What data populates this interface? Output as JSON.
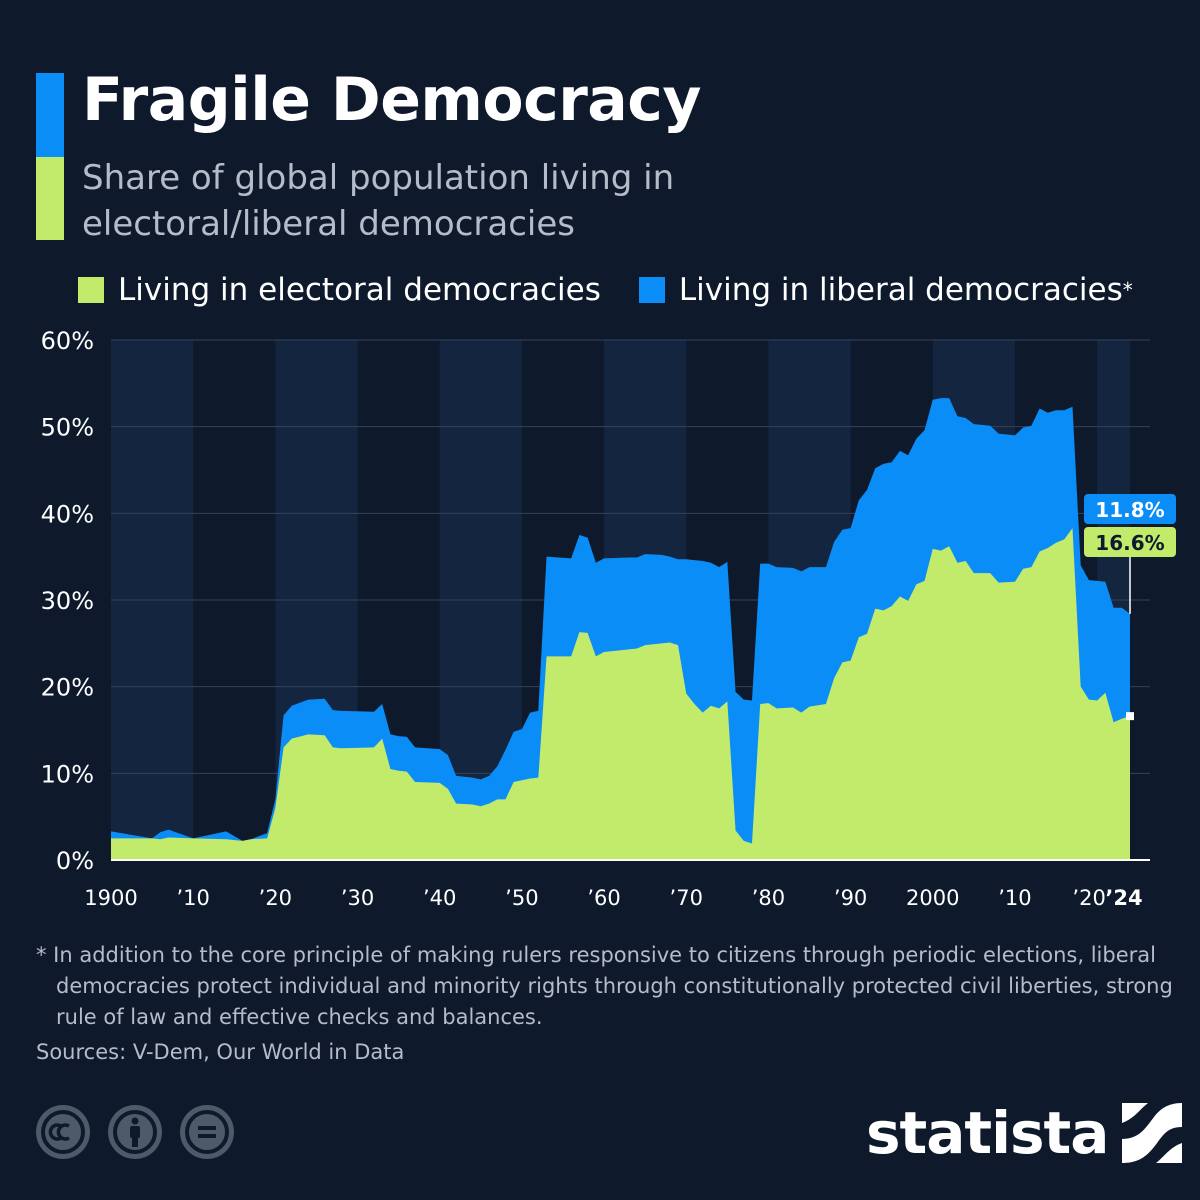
{
  "header": {
    "title": "Fragile Democracy",
    "subtitle": "Share of global population living in electoral/liberal democracies"
  },
  "legend": {
    "electoral": "Living in electoral democracies",
    "liberal": "Living in liberal democracies",
    "liberal_marker": "*"
  },
  "colors": {
    "background": "#0e1a2c",
    "electoral": "#c2ea6b",
    "liberal": "#0b8df7",
    "band": "#142540",
    "text_muted": "#b3bcc8"
  },
  "chart_data": {
    "type": "area",
    "stacked": true,
    "title": "Fragile Democracy",
    "subtitle": "Share of global population living in electoral/liberal democracies",
    "xlabel": "",
    "ylabel": "",
    "ylim": [
      0,
      60
    ],
    "xlim": [
      1900,
      2024
    ],
    "y_ticks": [
      "0%",
      "10%",
      "20%",
      "30%",
      "40%",
      "50%",
      "60%"
    ],
    "x_ticks": [
      {
        "year": 1900,
        "label": "1900"
      },
      {
        "year": 1910,
        "label": "’10"
      },
      {
        "year": 1920,
        "label": "’20"
      },
      {
        "year": 1930,
        "label": "’30"
      },
      {
        "year": 1940,
        "label": "’40"
      },
      {
        "year": 1950,
        "label": "’50"
      },
      {
        "year": 1960,
        "label": "’60"
      },
      {
        "year": 1970,
        "label": "’70"
      },
      {
        "year": 1980,
        "label": "’80"
      },
      {
        "year": 1990,
        "label": "’90"
      },
      {
        "year": 2000,
        "label": "2000"
      },
      {
        "year": 2010,
        "label": "’10"
      },
      {
        "year": 2020,
        "label": "’20"
      },
      {
        "year": 2024,
        "label": "’24",
        "bold": true
      }
    ],
    "series": [
      {
        "name": "Living in electoral democracies",
        "points": [
          [
            1900,
            2.5
          ],
          [
            1905,
            2.5
          ],
          [
            1906,
            2.4
          ],
          [
            1907,
            2.6
          ],
          [
            1910,
            2.5
          ],
          [
            1914,
            2.4
          ],
          [
            1916,
            2.2
          ],
          [
            1917,
            2.4
          ],
          [
            1919,
            2.5
          ],
          [
            1920,
            6
          ],
          [
            1921,
            13
          ],
          [
            1922,
            14
          ],
          [
            1924,
            14.5
          ],
          [
            1926,
            14.4
          ],
          [
            1927,
            13
          ],
          [
            1928,
            12.9
          ],
          [
            1932,
            13
          ],
          [
            1933,
            14
          ],
          [
            1934,
            10.5
          ],
          [
            1935,
            10.3
          ],
          [
            1936,
            10.2
          ],
          [
            1937,
            9
          ],
          [
            1940,
            8.9
          ],
          [
            1941,
            8.2
          ],
          [
            1942,
            6.5
          ],
          [
            1944,
            6.4
          ],
          [
            1945,
            6.2
          ],
          [
            1946,
            6.5
          ],
          [
            1947,
            7
          ],
          [
            1948,
            7
          ],
          [
            1949,
            9
          ],
          [
            1950,
            9.2
          ],
          [
            1951,
            9.4
          ],
          [
            1952,
            9.5
          ],
          [
            1953,
            23.5
          ],
          [
            1956,
            23.5
          ],
          [
            1957,
            26.3
          ],
          [
            1958,
            26.2
          ],
          [
            1959,
            23.5
          ],
          [
            1960,
            24
          ],
          [
            1963,
            24.3
          ],
          [
            1964,
            24.4
          ],
          [
            1965,
            24.8
          ],
          [
            1967,
            25
          ],
          [
            1968,
            25.1
          ],
          [
            1969,
            24.8
          ],
          [
            1970,
            19.2
          ],
          [
            1971,
            18
          ],
          [
            1972,
            17
          ],
          [
            1973,
            17.8
          ],
          [
            1974,
            17.5
          ],
          [
            1975,
            18.3
          ],
          [
            1976,
            3.4
          ],
          [
            1977,
            2.2
          ],
          [
            1978,
            1.9
          ],
          [
            1979,
            18
          ],
          [
            1980,
            18.1
          ],
          [
            1981,
            17.5
          ],
          [
            1983,
            17.6
          ],
          [
            1984,
            17
          ],
          [
            1985,
            17.7
          ],
          [
            1987,
            18
          ],
          [
            1988,
            21
          ],
          [
            1989,
            22.8
          ],
          [
            1990,
            23
          ],
          [
            1991,
            25.7
          ],
          [
            1992,
            26.1
          ],
          [
            1993,
            29
          ],
          [
            1994,
            28.8
          ],
          [
            1995,
            29.3
          ],
          [
            1996,
            30.4
          ],
          [
            1997,
            29.9
          ],
          [
            1998,
            31.8
          ],
          [
            1999,
            32.2
          ],
          [
            2000,
            35.9
          ],
          [
            2001,
            35.7
          ],
          [
            2002,
            36.2
          ],
          [
            2003,
            34.3
          ],
          [
            2004,
            34.5
          ],
          [
            2005,
            33.1
          ],
          [
            2007,
            33.1
          ],
          [
            2008,
            32
          ],
          [
            2010,
            32.1
          ],
          [
            2011,
            33.6
          ],
          [
            2012,
            33.8
          ],
          [
            2013,
            35.6
          ],
          [
            2014,
            36
          ],
          [
            2015,
            36.6
          ],
          [
            2016,
            37
          ],
          [
            2017,
            38.3
          ],
          [
            2018,
            20
          ],
          [
            2019,
            18.5
          ],
          [
            2020,
            18.4
          ],
          [
            2021,
            19.3
          ],
          [
            2022,
            15.9
          ],
          [
            2023,
            16.3
          ],
          [
            2024,
            16.6
          ]
        ]
      },
      {
        "name": "Living in liberal democracies",
        "points": [
          [
            1900,
            0.8
          ],
          [
            1903,
            0.9
          ],
          [
            1906,
            0.8
          ],
          [
            1907,
            0.9
          ],
          [
            1914,
            0.9
          ],
          [
            1915,
            0.8
          ],
          [
            1919,
            0.6
          ],
          [
            1920,
            1
          ],
          [
            1921,
            3.7
          ],
          [
            1922,
            3.8
          ],
          [
            1923,
            3.8
          ],
          [
            1924,
            4
          ],
          [
            1926,
            4.2
          ],
          [
            1927,
            4.3
          ],
          [
            1928,
            4.3
          ],
          [
            1932,
            4.1
          ],
          [
            1933,
            4
          ],
          [
            1934,
            4
          ],
          [
            1935,
            4
          ],
          [
            1936,
            4
          ],
          [
            1937,
            4
          ],
          [
            1940,
            3.9
          ],
          [
            1941,
            3.9
          ],
          [
            1942,
            3.2
          ],
          [
            1944,
            3.1
          ],
          [
            1945,
            3.1
          ],
          [
            1946,
            3.2
          ],
          [
            1947,
            3.8
          ],
          [
            1948,
            5.7
          ],
          [
            1949,
            5.8
          ],
          [
            1950,
            5.9
          ],
          [
            1951,
            7.6
          ],
          [
            1952,
            7.7
          ],
          [
            1953,
            11.5
          ],
          [
            1956,
            11.3
          ],
          [
            1957,
            11.2
          ],
          [
            1958,
            11
          ],
          [
            1959,
            10.8
          ],
          [
            1960,
            10.8
          ],
          [
            1963,
            10.6
          ],
          [
            1964,
            10.5
          ],
          [
            1965,
            10.5
          ],
          [
            1967,
            10.2
          ],
          [
            1968,
            9.9
          ],
          [
            1969,
            9.9
          ],
          [
            1970,
            15.5
          ],
          [
            1971,
            16.6
          ],
          [
            1972,
            17.5
          ],
          [
            1973,
            16.5
          ],
          [
            1974,
            16.3
          ],
          [
            1975,
            16.1
          ],
          [
            1976,
            16
          ],
          [
            1977,
            16.3
          ],
          [
            1978,
            16.5
          ],
          [
            1979,
            16.2
          ],
          [
            1980,
            16.1
          ],
          [
            1981,
            16.3
          ],
          [
            1983,
            16.1
          ],
          [
            1984,
            16.3
          ],
          [
            1985,
            16.1
          ],
          [
            1987,
            15.8
          ],
          [
            1988,
            15.7
          ],
          [
            1989,
            15.3
          ],
          [
            1990,
            15.3
          ],
          [
            1991,
            15.8
          ],
          [
            1992,
            16.6
          ],
          [
            1993,
            16.2
          ],
          [
            1994,
            16.9
          ],
          [
            1995,
            16.6
          ],
          [
            1996,
            16.8
          ],
          [
            1997,
            16.8
          ],
          [
            1998,
            16.8
          ],
          [
            1999,
            17.4
          ],
          [
            2000,
            17.2
          ],
          [
            2001,
            17.6
          ],
          [
            2002,
            17.1
          ],
          [
            2003,
            16.9
          ],
          [
            2004,
            16.5
          ],
          [
            2005,
            17.2
          ],
          [
            2007,
            17
          ],
          [
            2008,
            17.2
          ],
          [
            2010,
            16.9
          ],
          [
            2011,
            16.3
          ],
          [
            2012,
            16.3
          ],
          [
            2013,
            16.5
          ],
          [
            2014,
            15.6
          ],
          [
            2015,
            15.3
          ],
          [
            2016,
            14.9
          ],
          [
            2017,
            14
          ],
          [
            2018,
            14
          ],
          [
            2019,
            13.8
          ],
          [
            2020,
            13.8
          ],
          [
            2021,
            12.8
          ],
          [
            2022,
            13.2
          ],
          [
            2023,
            12.8
          ],
          [
            2024,
            11.8
          ]
        ]
      }
    ],
    "latest_labels": {
      "liberal": "11.8%",
      "electoral": "16.6%"
    }
  },
  "footer": {
    "footnote": "* In addition to the core principle of making rulers responsive to citizens through periodic elections, liberal democracies protect individual and minority rights through constitutionally protected civil liberties, strong rule of law and effective checks and balances.",
    "sources": "Sources: V-Dem, Our World in Data",
    "brand": "statista",
    "cc_icons": [
      "cc-icon",
      "attribution-icon",
      "no-derivatives-icon"
    ]
  }
}
